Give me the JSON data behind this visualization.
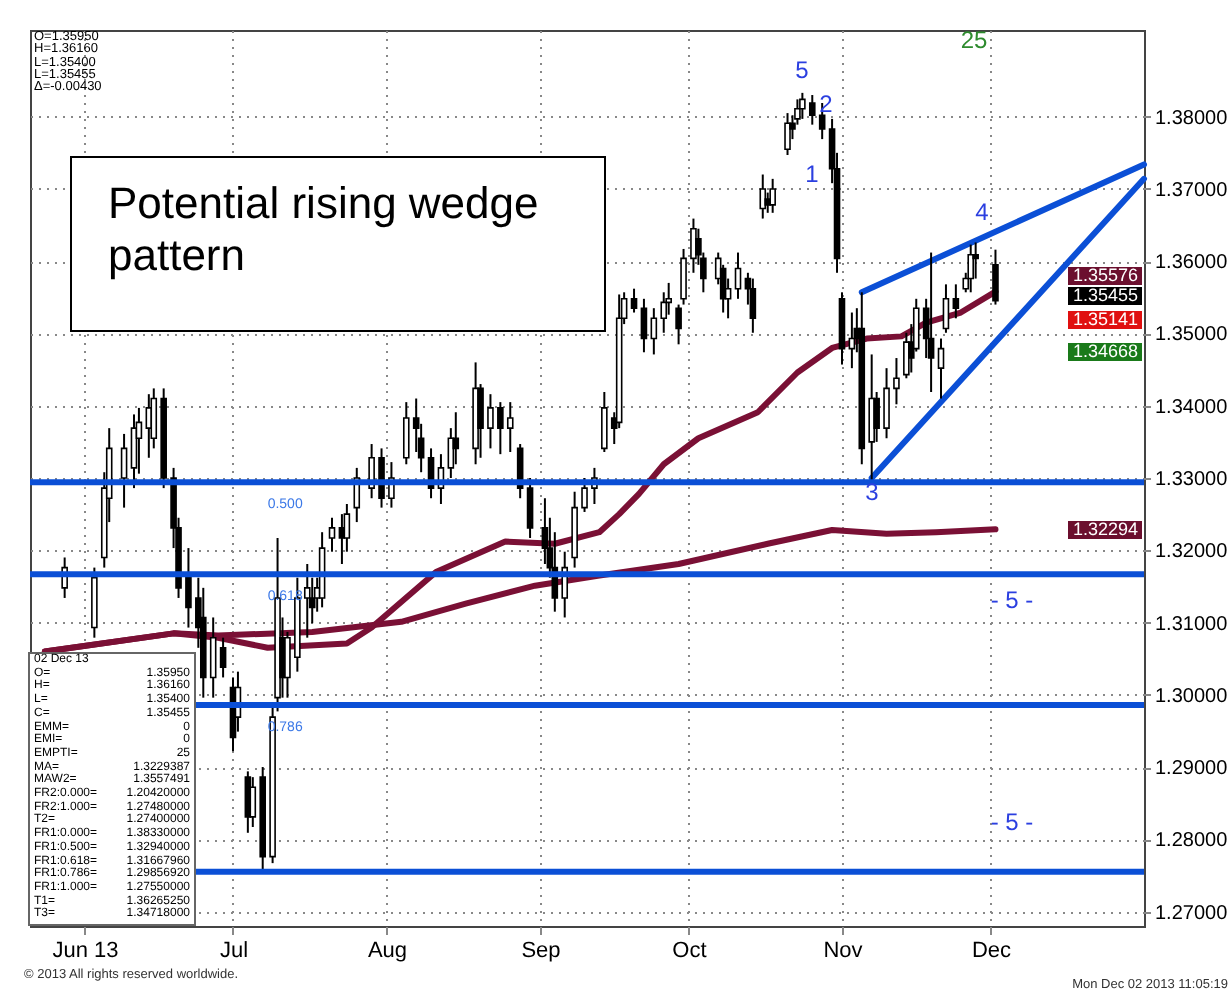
{
  "chart_data": {
    "type": "candlestick",
    "xlim": [
      "2013-05-21",
      "2014-01-01"
    ],
    "ylim": [
      1.268,
      1.392
    ],
    "xticks": [
      {
        "value": "2013-06-01",
        "label": "Jun 13"
      },
      {
        "value": "2013-07-01",
        "label": "Jul"
      },
      {
        "value": "2013-08-01",
        "label": "Aug"
      },
      {
        "value": "2013-09-01",
        "label": "Sep"
      },
      {
        "value": "2013-10-01",
        "label": "Oct"
      },
      {
        "value": "2013-11-01",
        "label": "Nov"
      },
      {
        "value": "2013-12-01",
        "label": "Dec"
      }
    ],
    "yticks": [
      {
        "value": 1.27,
        "label": "1.27000"
      },
      {
        "value": 1.28,
        "label": "1.28000"
      },
      {
        "value": 1.29,
        "label": "1.29000"
      },
      {
        "value": 1.3,
        "label": "1.30000"
      },
      {
        "value": 1.31,
        "label": "1.31000"
      },
      {
        "value": 1.32,
        "label": "1.32000"
      },
      {
        "value": 1.33,
        "label": "1.33000"
      },
      {
        "value": 1.34,
        "label": "1.34000"
      },
      {
        "value": 1.35,
        "label": "1.35000"
      },
      {
        "value": 1.36,
        "label": "1.36000"
      },
      {
        "value": 1.37,
        "label": "1.37000"
      },
      {
        "value": 1.38,
        "label": "1.38000"
      }
    ],
    "grid": true,
    "x": [
      "2013-05-28",
      "2013-06-03",
      "2013-06-05",
      "2013-06-06",
      "2013-06-09",
      "2013-06-11",
      "2013-06-12",
      "2013-06-14",
      "2013-06-15",
      "2013-06-17",
      "2013-06-19",
      "2013-06-20",
      "2013-06-22",
      "2013-06-24",
      "2013-06-25",
      "2013-06-27",
      "2013-06-29",
      "2013-07-01",
      "2013-07-02",
      "2013-07-04",
      "2013-07-05",
      "2013-07-07",
      "2013-07-09",
      "2013-07-10",
      "2013-07-11",
      "2013-07-12",
      "2013-07-14",
      "2013-07-16",
      "2013-07-17",
      "2013-07-18",
      "2013-07-19",
      "2013-07-21",
      "2013-07-23",
      "2013-07-24",
      "2013-07-26",
      "2013-07-29",
      "2013-07-31",
      "2013-08-02",
      "2013-08-05",
      "2013-08-07",
      "2013-08-08",
      "2013-08-10",
      "2013-08-12",
      "2013-08-14",
      "2013-08-15",
      "2013-08-19",
      "2013-08-20",
      "2013-08-22",
      "2013-08-24",
      "2013-08-26",
      "2013-08-28",
      "2013-08-30",
      "2013-09-02",
      "2013-09-03",
      "2013-09-04",
      "2013-09-06",
      "2013-09-08",
      "2013-09-10",
      "2013-09-12",
      "2013-09-14",
      "2013-09-16",
      "2013-09-17",
      "2013-09-18",
      "2013-09-20",
      "2013-09-22",
      "2013-09-24",
      "2013-09-26",
      "2013-09-27",
      "2013-09-29",
      "2013-09-30",
      "2013-10-02",
      "2013-10-03",
      "2013-10-04",
      "2013-10-07",
      "2013-10-08",
      "2013-10-09",
      "2013-10-11",
      "2013-10-13",
      "2013-10-14",
      "2013-10-16",
      "2013-10-17",
      "2013-10-18",
      "2013-10-21",
      "2013-10-22",
      "2013-10-23",
      "2013-10-24",
      "2013-10-26",
      "2013-10-28",
      "2013-10-30",
      "2013-10-31",
      "2013-11-01",
      "2013-11-03",
      "2013-11-04",
      "2013-11-05",
      "2013-11-07",
      "2013-11-08",
      "2013-11-10",
      "2013-11-12",
      "2013-11-14",
      "2013-11-15",
      "2013-11-16",
      "2013-11-18",
      "2013-11-19",
      "2013-11-21",
      "2013-11-22",
      "2013-11-24",
      "2013-11-26",
      "2013-11-27",
      "2013-11-28",
      "2013-12-02"
    ],
    "ohlc": [
      [
        1.3148,
        1.319,
        1.3134,
        1.3176
      ],
      [
        1.3093,
        1.3176,
        1.3079,
        1.3162
      ],
      [
        1.319,
        1.3308,
        1.3176,
        1.3286
      ],
      [
        1.3272,
        1.3369,
        1.3239,
        1.3341
      ],
      [
        1.33,
        1.3361,
        1.3259,
        1.3341
      ],
      [
        1.3314,
        1.3388,
        1.3286,
        1.3369
      ],
      [
        1.3355,
        1.3397,
        1.3306,
        1.3377
      ],
      [
        1.3369,
        1.3416,
        1.3328,
        1.3397
      ],
      [
        1.3355,
        1.3424,
        1.3341,
        1.341
      ],
      [
        1.341,
        1.3424,
        1.3286,
        1.33
      ],
      [
        1.33,
        1.3314,
        1.3203,
        1.3231
      ],
      [
        1.3231,
        1.3245,
        1.3134,
        1.3148
      ],
      [
        1.3162,
        1.3203,
        1.3093,
        1.3121
      ],
      [
        1.3134,
        1.3162,
        1.3065,
        1.3093
      ],
      [
        1.3107,
        1.3148,
        1.2996,
        1.3024
      ],
      [
        1.3024,
        1.3107,
        1.2996,
        1.3079
      ],
      [
        1.3065,
        1.3079,
        1.3024,
        1.3038
      ],
      [
        1.301,
        1.3024,
        1.2922,
        1.2941
      ],
      [
        1.2969,
        1.3032,
        1.2949,
        1.301
      ],
      [
        1.2886,
        1.2894,
        1.2809,
        1.2831
      ],
      [
        1.2831,
        1.2886,
        1.2817,
        1.2872
      ],
      [
        1.2886,
        1.29,
        1.2755,
        1.2776
      ],
      [
        1.2776,
        1.2988,
        1.2767,
        1.2969
      ],
      [
        1.2996,
        1.3217,
        1.2977,
        1.3134
      ],
      [
        1.3079,
        1.3107,
        1.2996,
        1.3024
      ],
      [
        1.3024,
        1.3087,
        1.2996,
        1.3079
      ],
      [
        1.3052,
        1.3162,
        1.3032,
        1.3134
      ],
      [
        1.3134,
        1.3181,
        1.3079,
        1.3148
      ],
      [
        1.3134,
        1.3162,
        1.3099,
        1.3121
      ],
      [
        1.3134,
        1.3162,
        1.3115,
        1.3148
      ],
      [
        1.3134,
        1.3225,
        1.3121,
        1.3203
      ],
      [
        1.3217,
        1.3245,
        1.3198,
        1.3231
      ],
      [
        1.3231,
        1.325,
        1.3181,
        1.3217
      ],
      [
        1.3217,
        1.3264,
        1.3198,
        1.325
      ],
      [
        1.3259,
        1.3314,
        1.3239,
        1.33
      ],
      [
        1.3286,
        1.3347,
        1.3272,
        1.3328
      ],
      [
        1.3328,
        1.3341,
        1.3259,
        1.3272
      ],
      [
        1.3272,
        1.3322,
        1.3259,
        1.33
      ],
      [
        1.3328,
        1.3405,
        1.3319,
        1.3383
      ],
      [
        1.3383,
        1.341,
        1.3336,
        1.3369
      ],
      [
        1.3355,
        1.3375,
        1.3308,
        1.3328
      ],
      [
        1.3328,
        1.3341,
        1.3272,
        1.3286
      ],
      [
        1.3286,
        1.3333,
        1.3264,
        1.3314
      ],
      [
        1.3314,
        1.3369,
        1.33,
        1.3355
      ],
      [
        1.3355,
        1.3391,
        1.3319,
        1.3341
      ],
      [
        1.3341,
        1.346,
        1.3319,
        1.3424
      ],
      [
        1.3424,
        1.343,
        1.3328,
        1.3369
      ],
      [
        1.3369,
        1.3416,
        1.3341,
        1.3397
      ],
      [
        1.3397,
        1.3405,
        1.3333,
        1.3369
      ],
      [
        1.3369,
        1.3405,
        1.3336,
        1.3383
      ],
      [
        1.3341,
        1.3347,
        1.3272,
        1.3286
      ],
      [
        1.3286,
        1.33,
        1.3217,
        1.3231
      ],
      [
        1.3231,
        1.3272,
        1.3181,
        1.3203
      ],
      [
        1.3203,
        1.3245,
        1.3162,
        1.3176
      ],
      [
        1.3176,
        1.3225,
        1.3115,
        1.3134
      ],
      [
        1.3134,
        1.3198,
        1.3107,
        1.3176
      ],
      [
        1.319,
        1.3281,
        1.3176,
        1.3259
      ],
      [
        1.3259,
        1.33,
        1.3253,
        1.3286
      ],
      [
        1.3286,
        1.3314,
        1.3264,
        1.33
      ],
      [
        1.3341,
        1.3419,
        1.3336,
        1.3397
      ],
      [
        1.3383,
        1.3391,
        1.3347,
        1.3369
      ],
      [
        1.3377,
        1.3554,
        1.3369,
        1.3521
      ],
      [
        1.3521,
        1.3557,
        1.3513,
        1.3548
      ],
      [
        1.3548,
        1.3562,
        1.3529,
        1.3535
      ],
      [
        1.3535,
        1.3548,
        1.3474,
        1.3493
      ],
      [
        1.3493,
        1.3535,
        1.3471,
        1.3521
      ],
      [
        1.3521,
        1.3557,
        1.3501,
        1.3543
      ],
      [
        1.3543,
        1.357,
        1.3526,
        1.3548
      ],
      [
        1.3535,
        1.354,
        1.3485,
        1.3507
      ],
      [
        1.3548,
        1.3617,
        1.354,
        1.3604
      ],
      [
        1.3604,
        1.3659,
        1.3584,
        1.3645
      ],
      [
        1.3631,
        1.3645,
        1.3595,
        1.3609
      ],
      [
        1.3604,
        1.3612,
        1.3557,
        1.3576
      ],
      [
        1.3576,
        1.3612,
        1.3568,
        1.3604
      ],
      [
        1.359,
        1.3595,
        1.3529,
        1.3548
      ],
      [
        1.3548,
        1.3576,
        1.3521,
        1.3562
      ],
      [
        1.3562,
        1.3612,
        1.3548,
        1.359
      ],
      [
        1.3576,
        1.3584,
        1.354,
        1.3562
      ],
      [
        1.3562,
        1.3576,
        1.3501,
        1.3521
      ],
      [
        1.3673,
        1.372,
        1.3659,
        1.37
      ],
      [
        1.3686,
        1.3695,
        1.3667,
        1.3678
      ],
      [
        1.3678,
        1.3714,
        1.3667,
        1.37
      ],
      [
        1.3755,
        1.3805,
        1.3747,
        1.3791
      ],
      [
        1.3791,
        1.3802,
        1.3769,
        1.3783
      ],
      [
        1.3797,
        1.3824,
        1.3789,
        1.3811
      ],
      [
        1.3811,
        1.3833,
        1.3797,
        1.3824
      ],
      [
        1.3819,
        1.383,
        1.3789,
        1.3802
      ],
      [
        1.3802,
        1.3819,
        1.3769,
        1.3783
      ],
      [
        1.3783,
        1.3797,
        1.3708,
        1.3728
      ],
      [
        1.3728,
        1.375,
        1.3584,
        1.3604
      ],
      [
        1.3548,
        1.3557,
        1.3457,
        1.3479
      ],
      [
        1.3479,
        1.3529,
        1.3452,
        1.3493
      ],
      [
        1.3507,
        1.3535,
        1.3474,
        1.3493
      ],
      [
        1.3507,
        1.3557,
        1.3319,
        1.3341
      ],
      [
        1.335,
        1.3471,
        1.3295,
        1.341
      ],
      [
        1.341,
        1.3419,
        1.335,
        1.3369
      ],
      [
        1.3369,
        1.3452,
        1.3355,
        1.3424
      ],
      [
        1.3424,
        1.3466,
        1.3402,
        1.3438
      ],
      [
        1.3443,
        1.3501,
        1.3438,
        1.3488
      ],
      [
        1.3488,
        1.3513,
        1.3446,
        1.3466
      ],
      [
        1.3479,
        1.3548,
        1.3475,
        1.3535
      ],
      [
        1.3535,
        1.3548,
        1.3466,
        1.3493
      ],
      [
        1.3493,
        1.3612,
        1.3419,
        1.3466
      ],
      [
        1.3452,
        1.3493,
        1.341,
        1.3479
      ],
      [
        1.3507,
        1.3568,
        1.3501,
        1.3548
      ],
      [
        1.3548,
        1.3568,
        1.3521,
        1.3535
      ],
      [
        1.3562,
        1.3584,
        1.3557,
        1.3576
      ],
      [
        1.3576,
        1.3623,
        1.3557,
        1.3609
      ],
      [
        1.3609,
        1.3626,
        1.3576,
        1.3604
      ],
      [
        1.3595,
        1.3616,
        1.354,
        1.35455
      ]
    ],
    "series": [
      {
        "type": "line",
        "color": "#7a1035",
        "x": [
          "2013-05-24",
          "2013-06-19",
          "2013-06-28",
          "2013-07-17",
          "2013-08-04",
          "2013-08-17",
          "2013-08-31",
          "2013-09-13",
          "2013-09-29",
          "2013-10-17",
          "2013-10-30",
          "2013-11-10",
          "2013-11-20",
          "2013-12-02"
        ],
        "values": [
          1.306,
          1.3085,
          1.3082,
          1.3087,
          1.3101,
          1.3126,
          1.3151,
          1.3165,
          1.3181,
          1.3209,
          1.3228,
          1.3223,
          1.3225,
          1.3229
        ]
      },
      {
        "type": "line",
        "color": "#7a1035",
        "x": [
          "2013-05-24",
          "2013-06-19",
          "2013-06-28",
          "2013-07-08",
          "2013-07-24",
          "2013-07-29",
          "2013-08-11",
          "2013-08-25",
          "2013-09-04",
          "2013-09-13",
          "2013-09-17",
          "2013-09-21",
          "2013-09-26",
          "2013-10-03",
          "2013-10-15",
          "2013-10-23",
          "2013-10-30",
          "2013-11-06",
          "2013-11-13",
          "2013-11-18",
          "2013-11-25",
          "2013-12-02"
        ],
        "values": [
          1.306,
          1.3085,
          1.3079,
          1.3065,
          1.3071,
          1.3093,
          1.317,
          1.3212,
          1.3209,
          1.3225,
          1.325,
          1.3278,
          1.3319,
          1.3355,
          1.3391,
          1.3446,
          1.348,
          1.3493,
          1.3496,
          1.3515,
          1.3529,
          1.3558
        ]
      },
      {
        "type": "line",
        "color": "#0b4fd6",
        "x": [
          "2013-11-05",
          "2014-01-01"
        ],
        "values": [
          1.3557,
          1.3734
        ]
      },
      {
        "type": "line",
        "color": "#0b4fd6",
        "x": [
          "2013-11-07",
          "2014-01-01"
        ],
        "values": [
          1.33,
          1.3714
        ]
      }
    ],
    "ref_lines": [
      {
        "axis": "y",
        "value": 1.3294,
        "color": "#0b4fd6"
      },
      {
        "axis": "y",
        "value": 1.3166796,
        "color": "#0b4fd6"
      },
      {
        "axis": "y",
        "value": 1.2985692,
        "color": "#0b4fd6"
      },
      {
        "axis": "y",
        "value": 1.2755,
        "color": "#0b4fd6"
      }
    ],
    "annotations": [
      "Potential rising wedge pattern",
      "O=1.35950",
      "H=1.36160",
      "L=1.35400",
      "L=1.35455",
      "Δ=-0.00430",
      "02 Dec 13",
      "O= 1.35950",
      "H= 1.36160",
      "L= 1.35400",
      "C= 1.35455",
      "EMM= 0",
      "EMI= 0",
      "EMPTI= 25",
      "MA= 1.3229387",
      "MAW2= 1.3557491",
      "FR2:0.000= 1.20420000",
      "FR2:1.000= 1.27480000",
      "T2= 1.27400000",
      "FR1:0.000= 1.38330000",
      "FR1:0.500= 1.32940000",
      "FR1:0.618= 1.31667960",
      "FR1:0.786= 1.29856920",
      "FR1:1.000= 1.27550000",
      "T1= 1.36265250",
      "T3= 1.34718000",
      "© 2013 All rights reserved worldwide.",
      "Mon Dec 02 2013 11:05:19",
      {
        "text": "0.500",
        "x": "2013-07-08",
        "y": 1.3294
      },
      {
        "text": "0.618",
        "x": "2013-07-08",
        "y": 1.3166796
      },
      {
        "text": "0.786",
        "x": "2013-07-08",
        "y": 1.2985692
      },
      "5",
      "2",
      "1",
      "3",
      "4",
      "25",
      "- 5 -",
      "- 5 -",
      "1.35576",
      "1.35455",
      "1.35141",
      "1.34668",
      "1.32294"
    ]
  }
}
